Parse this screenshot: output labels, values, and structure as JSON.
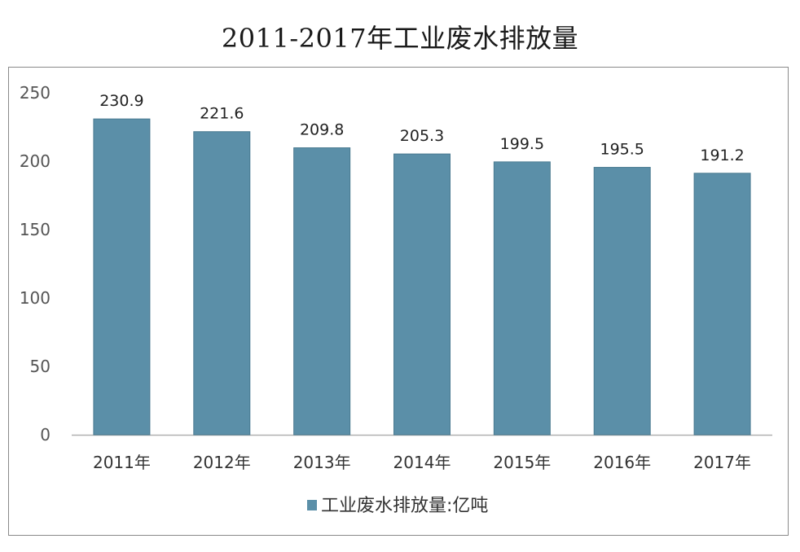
{
  "chart_data": {
    "type": "bar",
    "title": "2011-2017年工业废水排放量",
    "categories": [
      "2011年",
      "2012年",
      "2013年",
      "2014年",
      "2015年",
      "2016年",
      "2017年"
    ],
    "series": [
      {
        "name": "工业废水排放量:亿吨",
        "values": [
          230.9,
          221.6,
          209.8,
          205.3,
          199.5,
          195.5,
          191.2
        ]
      }
    ],
    "data_labels": [
      "230.9",
      "221.6",
      "209.8",
      "205.3",
      "199.5",
      "195.5",
      "191.2"
    ],
    "y_ticks": [
      0,
      50,
      100,
      150,
      200,
      250
    ],
    "y_tick_labels": [
      "0",
      "50",
      "100",
      "150",
      "200",
      "250"
    ],
    "ylim": [
      0,
      250
    ],
    "grid": false,
    "legend_position": "bottom",
    "colors": {
      "bar": "#5b8fa8",
      "bar_edge": "#4a7a91",
      "axis": "#b0b0b0",
      "frame": "#8a8a8a"
    }
  }
}
